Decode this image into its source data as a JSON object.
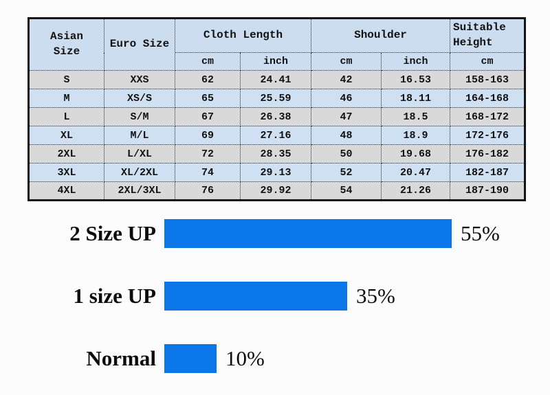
{
  "table": {
    "header": {
      "asian_size": "Asian\nSize",
      "euro_size": "Euro Size",
      "cloth_length": "Cloth Length",
      "shoulder": "Shoulder",
      "suitable_height": "Suitable\nHeight",
      "unit_cm": "cm",
      "unit_inch": "inch"
    },
    "rows": [
      {
        "asian": "S",
        "euro": "XXS",
        "len_cm": "62",
        "len_in": "24.41",
        "sh_cm": "42",
        "sh_in": "16.53",
        "height": "158-163"
      },
      {
        "asian": "M",
        "euro": "XS/S",
        "len_cm": "65",
        "len_in": "25.59",
        "sh_cm": "46",
        "sh_in": "18.11",
        "height": "164-168"
      },
      {
        "asian": "L",
        "euro": "S/M",
        "len_cm": "67",
        "len_in": "26.38",
        "sh_cm": "47",
        "sh_in": "18.5",
        "height": "168-172"
      },
      {
        "asian": "XL",
        "euro": "M/L",
        "len_cm": "69",
        "len_in": "27.16",
        "sh_cm": "48",
        "sh_in": "18.9",
        "height": "172-176"
      },
      {
        "asian": "2XL",
        "euro": "L/XL",
        "len_cm": "72",
        "len_in": "28.35",
        "sh_cm": "50",
        "sh_in": "19.68",
        "height": "176-182"
      },
      {
        "asian": "3XL",
        "euro": "XL/2XL",
        "len_cm": "74",
        "len_in": "29.13",
        "sh_cm": "52",
        "sh_in": "20.47",
        "height": "182-187"
      },
      {
        "asian": "4XL",
        "euro": "2XL/3XL",
        "len_cm": "76",
        "len_in": "29.92",
        "sh_cm": "54",
        "sh_in": "21.26",
        "height": "187-190"
      }
    ]
  },
  "chart_data": {
    "type": "bar",
    "orientation": "horizontal",
    "categories": [
      "2 Size UP",
      "1 size UP",
      "Normal"
    ],
    "values": [
      55,
      35,
      10
    ],
    "value_labels": [
      "55%",
      "35%",
      "10%"
    ],
    "xlim": [
      0,
      100
    ],
    "legend": "none",
    "grid": false,
    "bar_color": "#0b76e8"
  },
  "colors": {
    "header_blue": "#ccddf0",
    "row_grey": "#d9d9d9",
    "row_blue": "#cfe0f2",
    "bar_blue": "#0b76e8",
    "border_black": "#141414"
  }
}
